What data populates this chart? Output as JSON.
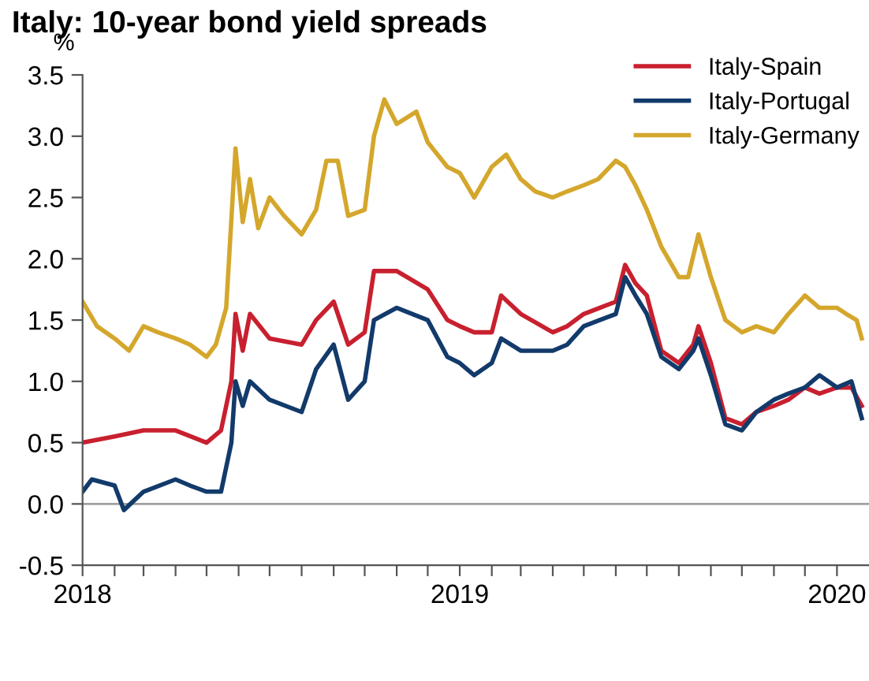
{
  "chart_data": {
    "type": "line",
    "title": "Italy: 10-year bond yield spreads",
    "ylabel": "%",
    "xlim": [
      "2018-01-01",
      "2020-02-01"
    ],
    "xticks": [
      {
        "value": "2018-01-01",
        "label": "2018"
      },
      {
        "value": "2018-02-01",
        "label": null
      },
      {
        "value": "2018-03-01",
        "label": null
      },
      {
        "value": "2018-04-01",
        "label": null
      },
      {
        "value": "2018-05-01",
        "label": null
      },
      {
        "value": "2018-06-01",
        "label": null
      },
      {
        "value": "2018-07-01",
        "label": null
      },
      {
        "value": "2018-08-01",
        "label": null
      },
      {
        "value": "2018-09-01",
        "label": null
      },
      {
        "value": "2018-10-01",
        "label": null
      },
      {
        "value": "2018-11-01",
        "label": null
      },
      {
        "value": "2018-12-01",
        "label": null
      },
      {
        "value": "2019-01-01",
        "label": "2019"
      },
      {
        "value": "2019-02-01",
        "label": null
      },
      {
        "value": "2019-03-01",
        "label": null
      },
      {
        "value": "2019-04-01",
        "label": null
      },
      {
        "value": "2019-05-01",
        "label": null
      },
      {
        "value": "2019-06-01",
        "label": null
      },
      {
        "value": "2019-07-01",
        "label": null
      },
      {
        "value": "2019-08-01",
        "label": null
      },
      {
        "value": "2019-09-01",
        "label": null
      },
      {
        "value": "2019-10-01",
        "label": null
      },
      {
        "value": "2019-11-01",
        "label": null
      },
      {
        "value": "2019-12-01",
        "label": null
      },
      {
        "value": "2020-01-01",
        "label": "2020"
      }
    ],
    "ylim": [
      -0.5,
      3.5
    ],
    "yticks": [
      {
        "value": -0.5,
        "label": "-0.5"
      },
      {
        "value": 0,
        "label": "0.0"
      },
      {
        "value": 0.5,
        "label": "0.5"
      },
      {
        "value": 1,
        "label": "1.0"
      },
      {
        "value": 1.5,
        "label": "1.5"
      },
      {
        "value": 2,
        "label": "2.0"
      },
      {
        "value": 2.5,
        "label": "2.5"
      },
      {
        "value": 3,
        "label": "3.0"
      },
      {
        "value": 3.5,
        "label": "3.5"
      }
    ],
    "ref_lines": [
      {
        "axis": "y",
        "value": 0,
        "color": "#a0a0a0"
      }
    ],
    "grid": false,
    "legend": "top right",
    "marker": "none",
    "line_style": "solid",
    "series": [
      {
        "name": "Italy-Spain",
        "color": "#c8202f",
        "x": [
          "2018-01-01",
          "2018-02-01",
          "2018-03-01",
          "2018-04-01",
          "2018-05-01",
          "2018-05-15",
          "2018-05-25",
          "2018-05-29",
          "2018-06-05",
          "2018-06-12",
          "2018-07-01",
          "2018-08-01",
          "2018-08-15",
          "2018-09-01",
          "2018-09-15",
          "2018-10-01",
          "2018-10-10",
          "2018-11-01",
          "2018-12-01",
          "2018-12-20",
          "2019-01-01",
          "2019-01-15",
          "2019-02-01",
          "2019-02-10",
          "2019-03-01",
          "2019-04-01",
          "2019-04-15",
          "2019-05-01",
          "2019-06-01",
          "2019-06-10",
          "2019-06-20",
          "2019-07-01",
          "2019-07-15",
          "2019-08-01",
          "2019-08-15",
          "2019-08-20",
          "2019-09-01",
          "2019-09-15",
          "2019-10-01",
          "2019-10-15",
          "2019-11-01",
          "2019-11-15",
          "2019-12-01",
          "2019-12-15",
          "2020-01-01",
          "2020-01-15",
          "2020-01-25"
        ],
        "values": [
          0.5,
          0.55,
          0.6,
          0.6,
          0.5,
          0.6,
          1.0,
          1.55,
          1.25,
          1.55,
          1.35,
          1.3,
          1.5,
          1.65,
          1.3,
          1.4,
          1.9,
          1.9,
          1.75,
          1.5,
          1.45,
          1.4,
          1.4,
          1.7,
          1.55,
          1.4,
          1.45,
          1.55,
          1.65,
          1.95,
          1.8,
          1.7,
          1.25,
          1.15,
          1.3,
          1.45,
          1.15,
          0.7,
          0.65,
          0.75,
          0.8,
          0.85,
          0.95,
          0.9,
          0.95,
          0.95,
          0.8
        ]
      },
      {
        "name": "Italy-Portugal",
        "color": "#123a6b",
        "x": [
          "2018-01-01",
          "2018-01-10",
          "2018-02-01",
          "2018-02-10",
          "2018-03-01",
          "2018-04-01",
          "2018-04-15",
          "2018-05-01",
          "2018-05-15",
          "2018-05-25",
          "2018-05-29",
          "2018-06-05",
          "2018-06-12",
          "2018-07-01",
          "2018-08-01",
          "2018-08-15",
          "2018-09-01",
          "2018-09-15",
          "2018-10-01",
          "2018-10-10",
          "2018-11-01",
          "2018-12-01",
          "2018-12-20",
          "2019-01-01",
          "2019-01-15",
          "2019-02-01",
          "2019-02-10",
          "2019-03-01",
          "2019-04-01",
          "2019-04-15",
          "2019-05-01",
          "2019-06-01",
          "2019-06-10",
          "2019-06-20",
          "2019-07-01",
          "2019-07-15",
          "2019-08-01",
          "2019-08-15",
          "2019-08-20",
          "2019-09-01",
          "2019-09-15",
          "2019-10-01",
          "2019-10-15",
          "2019-11-01",
          "2019-11-15",
          "2019-12-01",
          "2019-12-15",
          "2020-01-01",
          "2020-01-15",
          "2020-01-25"
        ],
        "values": [
          0.1,
          0.2,
          0.15,
          -0.05,
          0.1,
          0.2,
          0.15,
          0.1,
          0.1,
          0.5,
          1.0,
          0.8,
          1.0,
          0.85,
          0.75,
          1.1,
          1.3,
          0.85,
          1.0,
          1.5,
          1.6,
          1.5,
          1.2,
          1.15,
          1.05,
          1.15,
          1.35,
          1.25,
          1.25,
          1.3,
          1.45,
          1.55,
          1.85,
          1.7,
          1.55,
          1.2,
          1.1,
          1.25,
          1.35,
          1.05,
          0.65,
          0.6,
          0.75,
          0.85,
          0.9,
          0.95,
          1.05,
          0.95,
          1.0,
          0.7
        ]
      },
      {
        "name": "Italy-Germany",
        "color": "#d4a72c",
        "x": [
          "2018-01-01",
          "2018-01-15",
          "2018-02-01",
          "2018-02-15",
          "2018-03-01",
          "2018-03-15",
          "2018-04-01",
          "2018-04-15",
          "2018-05-01",
          "2018-05-10",
          "2018-05-20",
          "2018-05-29",
          "2018-06-05",
          "2018-06-12",
          "2018-06-20",
          "2018-07-01",
          "2018-07-15",
          "2018-08-01",
          "2018-08-15",
          "2018-08-25",
          "2018-09-05",
          "2018-09-15",
          "2018-10-01",
          "2018-10-10",
          "2018-10-20",
          "2018-11-01",
          "2018-11-20",
          "2018-12-01",
          "2018-12-20",
          "2019-01-01",
          "2019-01-15",
          "2019-02-01",
          "2019-02-15",
          "2019-03-01",
          "2019-03-15",
          "2019-04-01",
          "2019-04-15",
          "2019-05-01",
          "2019-05-15",
          "2019-06-01",
          "2019-06-10",
          "2019-06-20",
          "2019-07-01",
          "2019-07-15",
          "2019-08-01",
          "2019-08-10",
          "2019-08-20",
          "2019-09-01",
          "2019-09-15",
          "2019-10-01",
          "2019-10-15",
          "2019-11-01",
          "2019-11-15",
          "2019-12-01",
          "2019-12-15",
          "2020-01-01",
          "2020-01-10",
          "2020-01-20",
          "2020-01-25"
        ],
        "values": [
          1.65,
          1.45,
          1.35,
          1.25,
          1.45,
          1.4,
          1.35,
          1.3,
          1.2,
          1.3,
          1.6,
          2.9,
          2.3,
          2.65,
          2.25,
          2.5,
          2.35,
          2.2,
          2.4,
          2.8,
          2.8,
          2.35,
          2.4,
          3.0,
          3.3,
          3.1,
          3.2,
          2.95,
          2.75,
          2.7,
          2.5,
          2.75,
          2.85,
          2.65,
          2.55,
          2.5,
          2.55,
          2.6,
          2.65,
          2.8,
          2.75,
          2.6,
          2.4,
          2.1,
          1.85,
          1.85,
          2.2,
          1.85,
          1.5,
          1.4,
          1.45,
          1.4,
          1.55,
          1.7,
          1.6,
          1.6,
          1.55,
          1.5,
          1.35
        ]
      }
    ]
  }
}
